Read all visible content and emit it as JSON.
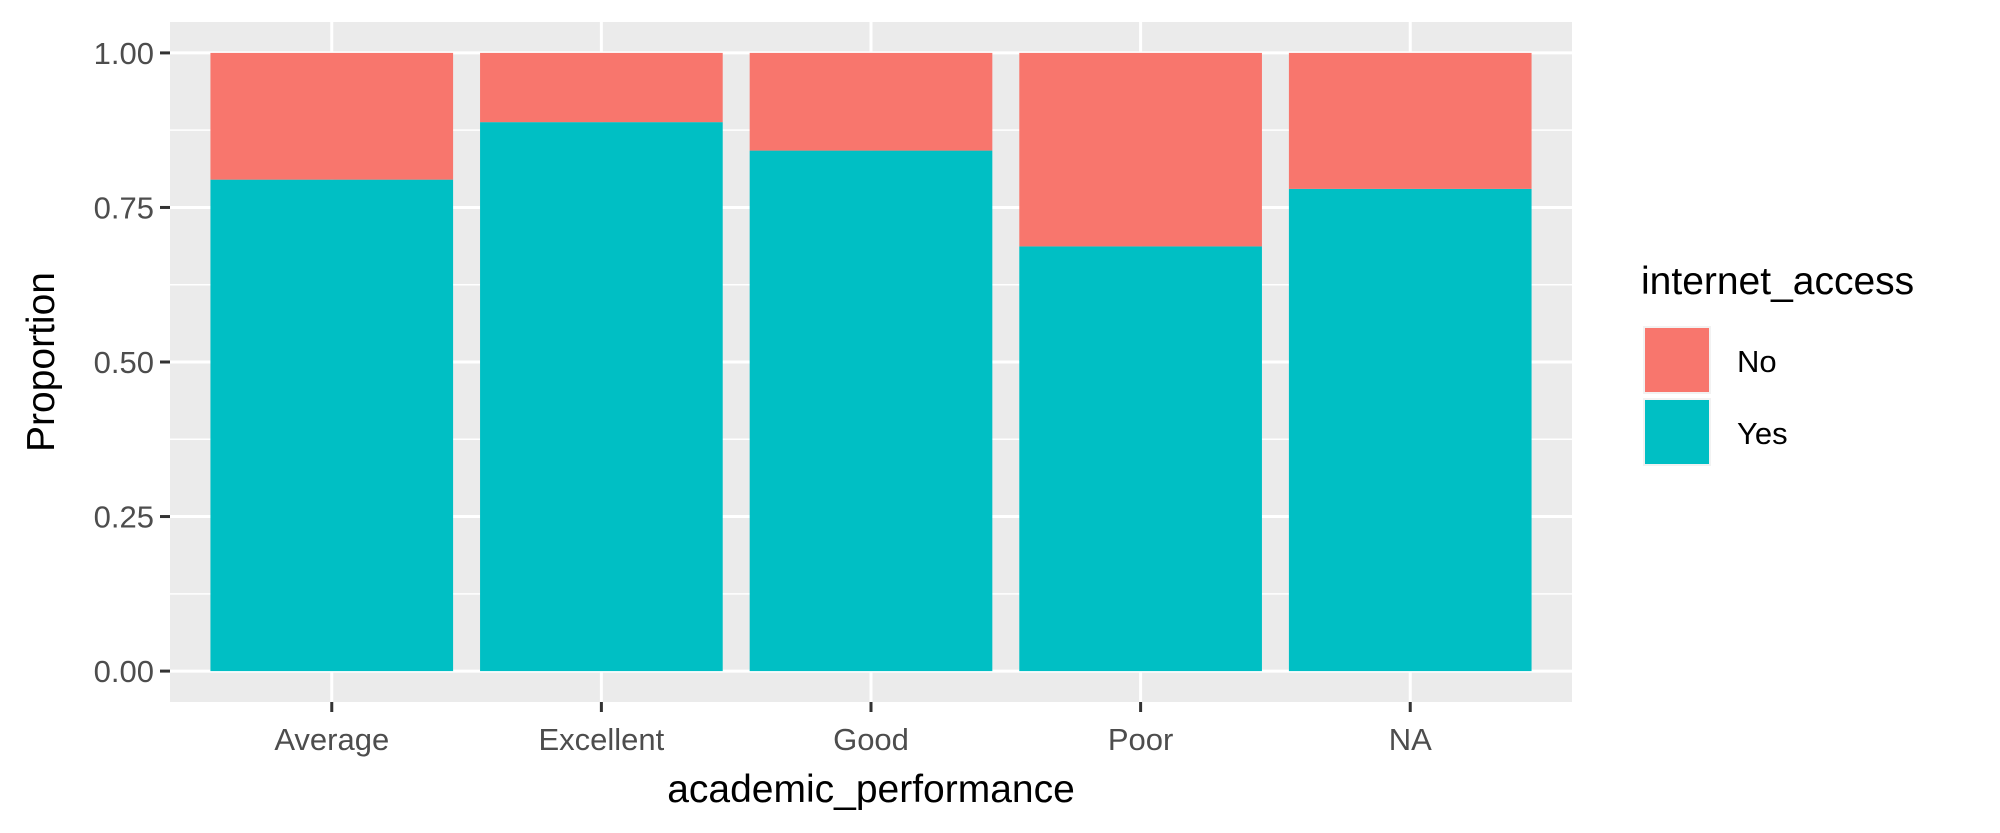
{
  "chart_data": {
    "type": "bar",
    "stacked": true,
    "categories": [
      "Average",
      "Excellent",
      "Good",
      "Poor",
      "NA"
    ],
    "series": [
      {
        "name": "Yes",
        "values": [
          0.795,
          0.888,
          0.842,
          0.687,
          0.78
        ],
        "color": "#00BFC4"
      },
      {
        "name": "No",
        "values": [
          0.205,
          0.112,
          0.158,
          0.313,
          0.22
        ],
        "color": "#F8766D"
      }
    ],
    "xlabel": "academic_performance",
    "ylabel": "Proportion",
    "ylim": [
      -0.05,
      1.05
    ],
    "yticks": [
      0,
      0.25,
      0.5,
      0.75,
      1.0
    ],
    "ytick_labels": [
      "0.00",
      "0.25",
      "0.50",
      "0.75",
      "1.00"
    ],
    "legend": {
      "title": "internet_access",
      "position": "right",
      "entries": [
        {
          "label": "No",
          "color": "#F8766D"
        },
        {
          "label": "Yes",
          "color": "#00BFC4"
        }
      ]
    },
    "grid": true,
    "panel_background": "#EBEBEB"
  }
}
